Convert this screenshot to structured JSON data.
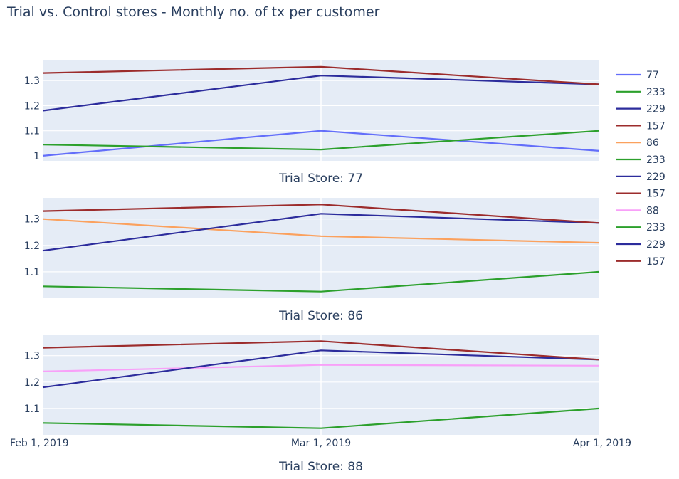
{
  "chart_data": {
    "type": "line",
    "title": "Trial vs. Control stores - Monthly no. of tx per customer",
    "x_tick_labels": [
      "Feb 1, 2019",
      "Mar 1, 2019",
      "Apr 1, 2019"
    ],
    "grid": true,
    "legend_position": "right",
    "panels": [
      {
        "subtitle": "Trial Store: 77",
        "ylim": [
          0.98,
          1.38
        ],
        "y_ticks": [
          1,
          1.1,
          1.2,
          1.3
        ],
        "y_tick_labels": [
          "1",
          "1.1",
          "1.2",
          "1.3"
        ],
        "series": [
          {
            "name": "77",
            "color": "#636efa",
            "values": [
              1.0,
              1.1,
              1.02
            ]
          },
          {
            "name": "233",
            "color": "#2ca02c",
            "values": [
              1.045,
              1.025,
              1.1
            ]
          },
          {
            "name": "229",
            "color": "#2c2c9c",
            "values": [
              1.18,
              1.32,
              1.285
            ]
          },
          {
            "name": "157",
            "color": "#9c2c2c",
            "values": [
              1.33,
              1.355,
              1.285
            ]
          }
        ]
      },
      {
        "subtitle": "Trial Store: 86",
        "ylim": [
          1.0,
          1.38
        ],
        "y_ticks": [
          1.1,
          1.2,
          1.3
        ],
        "y_tick_labels": [
          "1.1",
          "1.2",
          "1.3"
        ],
        "series": [
          {
            "name": "86",
            "color": "#fba15e",
            "values": [
              1.3,
              1.235,
              1.21
            ]
          },
          {
            "name": "233",
            "color": "#2ca02c",
            "values": [
              1.045,
              1.025,
              1.1
            ]
          },
          {
            "name": "229",
            "color": "#2c2c9c",
            "values": [
              1.18,
              1.32,
              1.285
            ]
          },
          {
            "name": "157",
            "color": "#9c2c2c",
            "values": [
              1.33,
              1.355,
              1.285
            ]
          }
        ]
      },
      {
        "subtitle": "Trial Store: 88",
        "ylim": [
          1.0,
          1.38
        ],
        "y_ticks": [
          1.1,
          1.2,
          1.3
        ],
        "y_tick_labels": [
          "1.1",
          "1.2",
          "1.3"
        ],
        "series": [
          {
            "name": "88",
            "color": "#f8a0f8",
            "values": [
              1.24,
              1.265,
              1.262
            ]
          },
          {
            "name": "233",
            "color": "#2ca02c",
            "values": [
              1.045,
              1.025,
              1.1
            ]
          },
          {
            "name": "229",
            "color": "#2c2c9c",
            "values": [
              1.18,
              1.32,
              1.285
            ]
          },
          {
            "name": "157",
            "color": "#9c2c2c",
            "values": [
              1.33,
              1.355,
              1.285
            ]
          }
        ]
      }
    ]
  }
}
